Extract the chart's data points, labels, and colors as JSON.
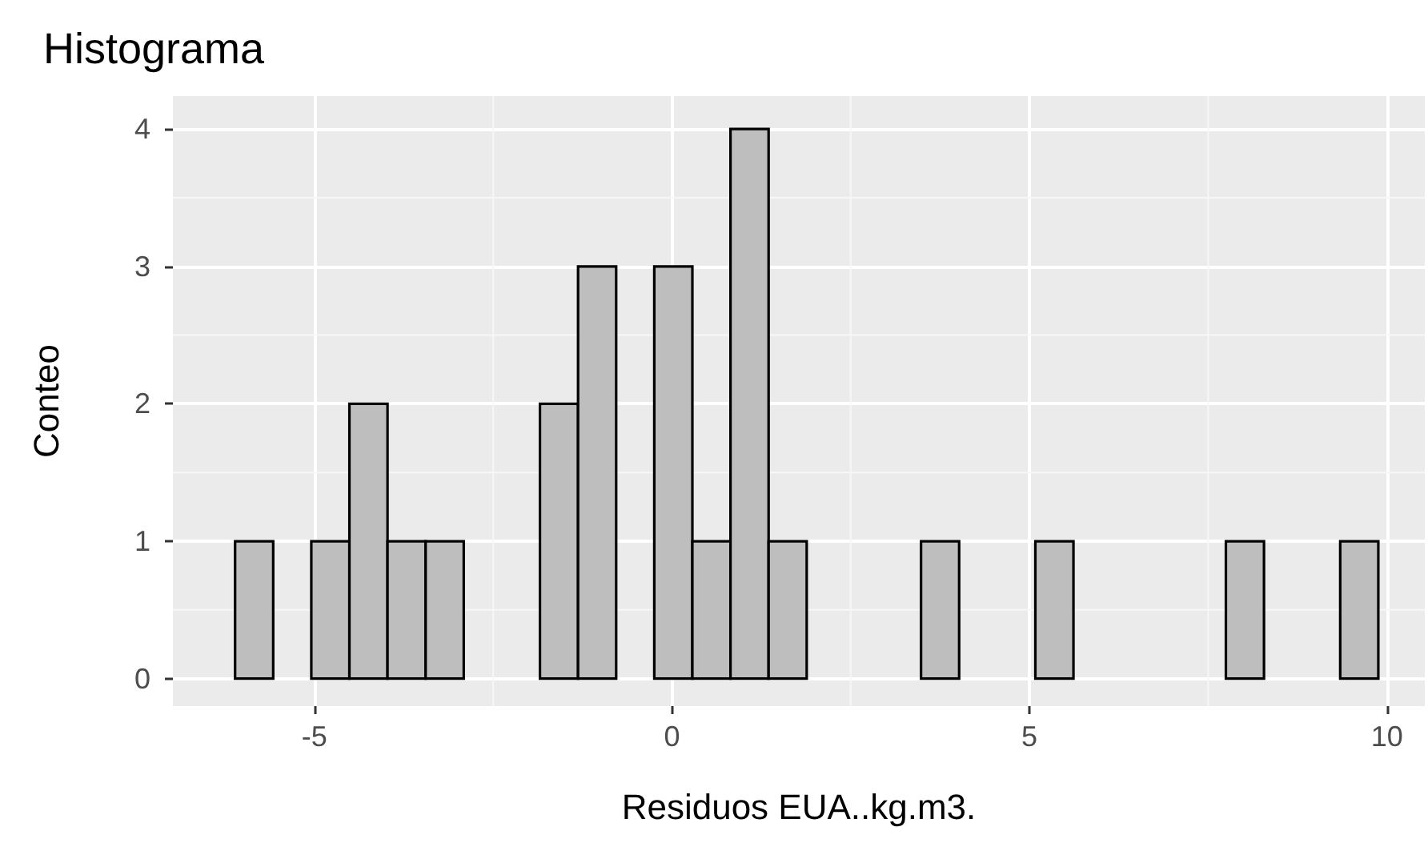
{
  "chart_data": {
    "type": "histogram",
    "title": "Histograma",
    "xlabel": "Residuos EUA..kg.m3.",
    "ylabel": "Conteo",
    "bins": [
      -6.11,
      -5.577,
      -5.044,
      -4.511,
      -3.978,
      -3.445,
      -2.912,
      -2.379,
      -1.846,
      -1.313,
      -0.78,
      -0.247,
      0.286,
      0.819,
      1.352,
      1.885,
      2.418,
      2.951,
      3.484,
      4.017,
      4.55,
      5.083,
      5.616,
      6.149,
      6.682,
      7.215,
      7.748,
      8.281,
      8.814,
      9.347,
      9.88
    ],
    "values": [
      1,
      0,
      1,
      2,
      1,
      1,
      0,
      0,
      2,
      3,
      0,
      3,
      1,
      4,
      1,
      0,
      0,
      0,
      1,
      0,
      0,
      1,
      0,
      0,
      0,
      0,
      1,
      0,
      0,
      1
    ],
    "color": "#bebebe",
    "xlim": [
      -6.98,
      10.53
    ],
    "xticks": [
      -5,
      0,
      5,
      10
    ],
    "ylim": [
      -0.2,
      4.24
    ],
    "yticks": [
      0,
      1,
      2,
      3,
      4
    ],
    "grid": true
  }
}
